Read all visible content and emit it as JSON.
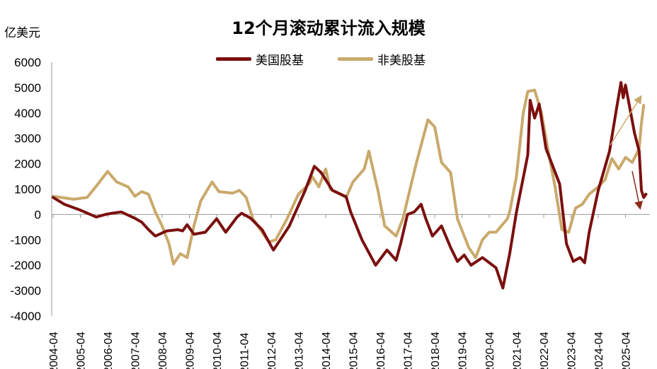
{
  "chart_data": {
    "type": "line",
    "title": "12个月滚动累计流入规模",
    "ylabel": "亿美元",
    "xlabel": "",
    "ylim": [
      -4000,
      6000
    ],
    "yticks": [
      6000,
      5000,
      4000,
      3000,
      2000,
      1000,
      0,
      -1000,
      -2000,
      -3000,
      -4000
    ],
    "xticks": [
      "2004-04",
      "2005-04",
      "2006-04",
      "2007-04",
      "2008-04",
      "2009-04",
      "2010-04",
      "2011-04",
      "2012-04",
      "2013-04",
      "2014-04",
      "2015-04",
      "2016-04",
      "2017-04",
      "2018-04",
      "2019-04",
      "2020-04",
      "2021-04",
      "2022-04",
      "2023-04",
      "2024-04",
      "2025-04"
    ],
    "grid": false,
    "legend": "top-center",
    "series": [
      {
        "name": "美国股基",
        "color": "#7b0f0f",
        "points": [
          [
            "2004-04",
            670
          ],
          [
            "2004-09",
            400
          ],
          [
            "2005-04",
            170
          ],
          [
            "2005-11",
            -100
          ],
          [
            "2006-03",
            0
          ],
          [
            "2006-06",
            50
          ],
          [
            "2006-10",
            100
          ],
          [
            "2007-04",
            -150
          ],
          [
            "2007-07",
            -300
          ],
          [
            "2007-10",
            -600
          ],
          [
            "2008-01",
            -850
          ],
          [
            "2008-06",
            -650
          ],
          [
            "2008-11",
            -600
          ],
          [
            "2009-01",
            -650
          ],
          [
            "2009-03",
            -400
          ],
          [
            "2009-06",
            -780
          ],
          [
            "2009-11",
            -700
          ],
          [
            "2010-04",
            -170
          ],
          [
            "2010-08",
            -700
          ],
          [
            "2011-01",
            -100
          ],
          [
            "2011-03",
            50
          ],
          [
            "2011-07",
            -150
          ],
          [
            "2011-12",
            -600
          ],
          [
            "2012-05",
            -1400
          ],
          [
            "2012-08",
            -1000
          ],
          [
            "2012-12",
            -450
          ],
          [
            "2013-07",
            950
          ],
          [
            "2013-11",
            1900
          ],
          [
            "2014-02",
            1650
          ],
          [
            "2014-07",
            950
          ],
          [
            "2015-01",
            700
          ],
          [
            "2015-03",
            100
          ],
          [
            "2015-08",
            -1000
          ],
          [
            "2016-02",
            -2000
          ],
          [
            "2016-07",
            -1400
          ],
          [
            "2016-11",
            -1800
          ],
          [
            "2017-01",
            -1150
          ],
          [
            "2017-04",
            0
          ],
          [
            "2017-07",
            100
          ],
          [
            "2017-10",
            400
          ],
          [
            "2017-12",
            -150
          ],
          [
            "2018-03",
            -850
          ],
          [
            "2018-07",
            -450
          ],
          [
            "2018-11",
            -1300
          ],
          [
            "2019-02",
            -1850
          ],
          [
            "2019-05",
            -1600
          ],
          [
            "2019-08",
            -2000
          ],
          [
            "2020-01",
            -1700
          ],
          [
            "2020-07",
            -2100
          ],
          [
            "2020-10",
            -2900
          ],
          [
            "2021-01",
            -1550
          ],
          [
            "2021-04",
            100
          ],
          [
            "2021-09",
            2350
          ],
          [
            "2021-10",
            4500
          ],
          [
            "2021-12",
            3800
          ],
          [
            "2022-02",
            4350
          ],
          [
            "2022-05",
            2600
          ],
          [
            "2022-11",
            1200
          ],
          [
            "2023-02",
            -1150
          ],
          [
            "2023-05",
            -1850
          ],
          [
            "2023-08",
            -1700
          ],
          [
            "2023-10",
            -1900
          ],
          [
            "2023-12",
            -700
          ],
          [
            "2024-04",
            950
          ],
          [
            "2024-09",
            2500
          ],
          [
            "2024-12",
            4150
          ],
          [
            "2025-02",
            5200
          ],
          [
            "2025-03",
            4600
          ],
          [
            "2025-04",
            5100
          ],
          [
            "2025-08",
            3200
          ],
          [
            "2025-10",
            2500
          ],
          [
            "2025-11",
            950
          ],
          [
            "2025-12",
            670
          ],
          [
            "2026-01",
            800
          ]
        ]
      },
      {
        "name": "非美股基",
        "color": "#c9a96b",
        "points": [
          [
            "2004-04",
            720
          ],
          [
            "2005-01",
            600
          ],
          [
            "2005-07",
            670
          ],
          [
            "2005-12",
            1230
          ],
          [
            "2006-04",
            1700
          ],
          [
            "2006-08",
            1280
          ],
          [
            "2007-01",
            1090
          ],
          [
            "2007-04",
            720
          ],
          [
            "2007-07",
            900
          ],
          [
            "2007-10",
            800
          ],
          [
            "2008-01",
            100
          ],
          [
            "2008-04",
            -450
          ],
          [
            "2008-07",
            -1150
          ],
          [
            "2008-09",
            -1950
          ],
          [
            "2008-12",
            -1550
          ],
          [
            "2009-03",
            -1700
          ],
          [
            "2009-06",
            -450
          ],
          [
            "2009-09",
            530
          ],
          [
            "2010-02",
            1280
          ],
          [
            "2010-05",
            900
          ],
          [
            "2010-11",
            840
          ],
          [
            "2011-02",
            950
          ],
          [
            "2011-05",
            670
          ],
          [
            "2011-08",
            -170
          ],
          [
            "2011-12",
            -700
          ],
          [
            "2012-03",
            -1080
          ],
          [
            "2012-06",
            -1000
          ],
          [
            "2012-11",
            -170
          ],
          [
            "2013-04",
            800
          ],
          [
            "2013-09",
            1230
          ],
          [
            "2013-10",
            1500
          ],
          [
            "2014-01",
            1090
          ],
          [
            "2014-04",
            1790
          ],
          [
            "2014-06",
            1000
          ],
          [
            "2015-01",
            670
          ],
          [
            "2015-04",
            1280
          ],
          [
            "2015-09",
            1790
          ],
          [
            "2015-11",
            2500
          ],
          [
            "2016-03",
            950
          ],
          [
            "2016-06",
            -450
          ],
          [
            "2016-11",
            -850
          ],
          [
            "2017-02",
            -170
          ],
          [
            "2017-05",
            950
          ],
          [
            "2017-08",
            2050
          ],
          [
            "2018-01",
            3730
          ],
          [
            "2018-04",
            3450
          ],
          [
            "2018-07",
            2050
          ],
          [
            "2018-11",
            1650
          ],
          [
            "2019-02",
            -170
          ],
          [
            "2019-07",
            -1300
          ],
          [
            "2019-10",
            -1700
          ],
          [
            "2020-01",
            -1000
          ],
          [
            "2020-04",
            -700
          ],
          [
            "2020-07",
            -700
          ],
          [
            "2020-12",
            -170
          ],
          [
            "2021-01",
            100
          ],
          [
            "2021-04",
            1500
          ],
          [
            "2021-07",
            4000
          ],
          [
            "2021-09",
            4850
          ],
          [
            "2021-12",
            4900
          ],
          [
            "2022-03",
            4000
          ],
          [
            "2022-06",
            2500
          ],
          [
            "2022-09",
            1090
          ],
          [
            "2022-12",
            -600
          ],
          [
            "2023-03",
            -700
          ],
          [
            "2023-06",
            250
          ],
          [
            "2023-09",
            400
          ],
          [
            "2023-12",
            800
          ],
          [
            "2024-04",
            1090
          ],
          [
            "2024-07",
            1370
          ],
          [
            "2024-10",
            2200
          ],
          [
            "2025-01",
            1790
          ],
          [
            "2025-04",
            2250
          ],
          [
            "2025-07",
            2050
          ],
          [
            "2025-10",
            2600
          ],
          [
            "2025-11",
            3600
          ],
          [
            "2025-12",
            4300
          ]
        ]
      }
    ]
  }
}
